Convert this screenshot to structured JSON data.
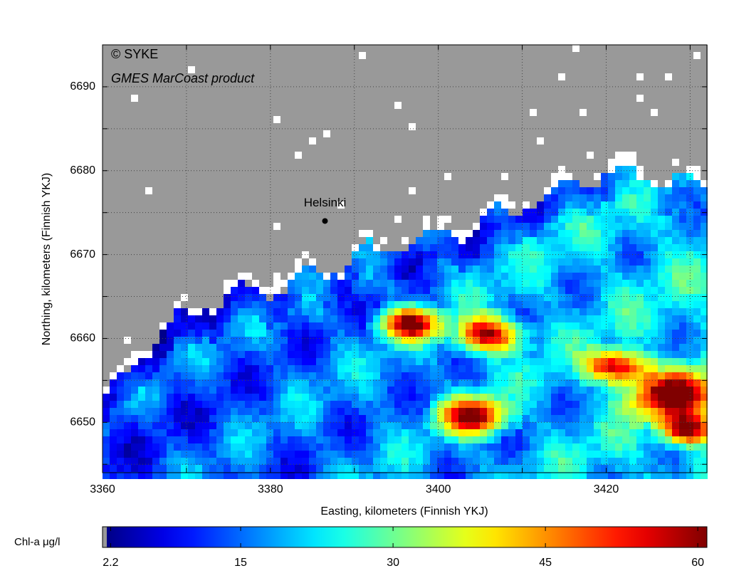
{
  "chart_data": {
    "type": "heatmap",
    "watermark": "© SYKE",
    "subtitle": "GMES MarCoast product",
    "x_label": "Easting, kilometers (Finnish YKJ)",
    "y_label": "Northing, kilometers (Finnish YKJ)",
    "xlim": [
      3360,
      3432
    ],
    "ylim": [
      6644,
      6695
    ],
    "xticks": [
      3360,
      3380,
      3400,
      3420
    ],
    "yticks": [
      6650,
      6660,
      6670,
      6680,
      6690
    ],
    "x_minor_ticks": [
      3370,
      3390,
      3410,
      3430
    ],
    "y_minor_ticks": [
      6645,
      6655,
      6665,
      6675,
      6685
    ],
    "grid": true,
    "annotations": [
      {
        "text": "Helsinki",
        "x": 3386.5,
        "y": 6674
      }
    ],
    "colorbar": {
      "label": "Chl-a μg/l",
      "lim": [
        1.4,
        60.9
      ],
      "ticks": [
        2.2,
        15,
        30,
        45,
        60
      ],
      "colormap": "jet"
    }
  }
}
